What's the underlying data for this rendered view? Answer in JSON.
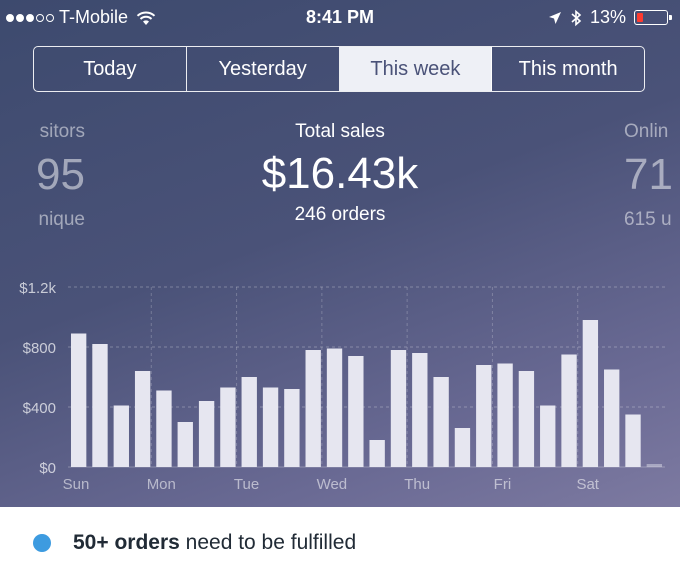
{
  "status_bar": {
    "carrier": "T-Mobile",
    "time": "8:41 PM",
    "battery": "13%"
  },
  "tabs": [
    {
      "label": "Today",
      "active": false
    },
    {
      "label": "Yesterday",
      "active": false
    },
    {
      "label": "This week",
      "active": true
    },
    {
      "label": "This month",
      "active": false
    }
  ],
  "stats": {
    "left": {
      "label": "sitors",
      "value": "95",
      "sub": "nique"
    },
    "center": {
      "label": "Total sales",
      "value": "$16.43k",
      "sub": "246 orders"
    },
    "right": {
      "label": "Onlin",
      "value": "71",
      "sub": "615 u"
    }
  },
  "notice": {
    "bold": "50+ orders",
    "rest": " need to be fulfilled",
    "dot_color": "#3d9be0"
  },
  "chart_data": {
    "type": "bar",
    "ytick_labels": [
      "$1.2k",
      "$800",
      "$400",
      "$0"
    ],
    "ytick_values": [
      1200,
      800,
      400,
      0
    ],
    "ylim": [
      0,
      1200
    ],
    "xtick_labels": [
      "Sun",
      "Mon",
      "Tue",
      "Wed",
      "Thu",
      "Fri",
      "Sat"
    ],
    "grid": true,
    "bar_color": "#e6e6f0",
    "values": [
      890,
      820,
      410,
      640,
      510,
      300,
      440,
      530,
      600,
      530,
      520,
      780,
      790,
      740,
      180,
      780,
      760,
      600,
      260,
      680,
      690,
      640,
      410,
      750,
      980,
      650,
      350,
      20
    ]
  }
}
